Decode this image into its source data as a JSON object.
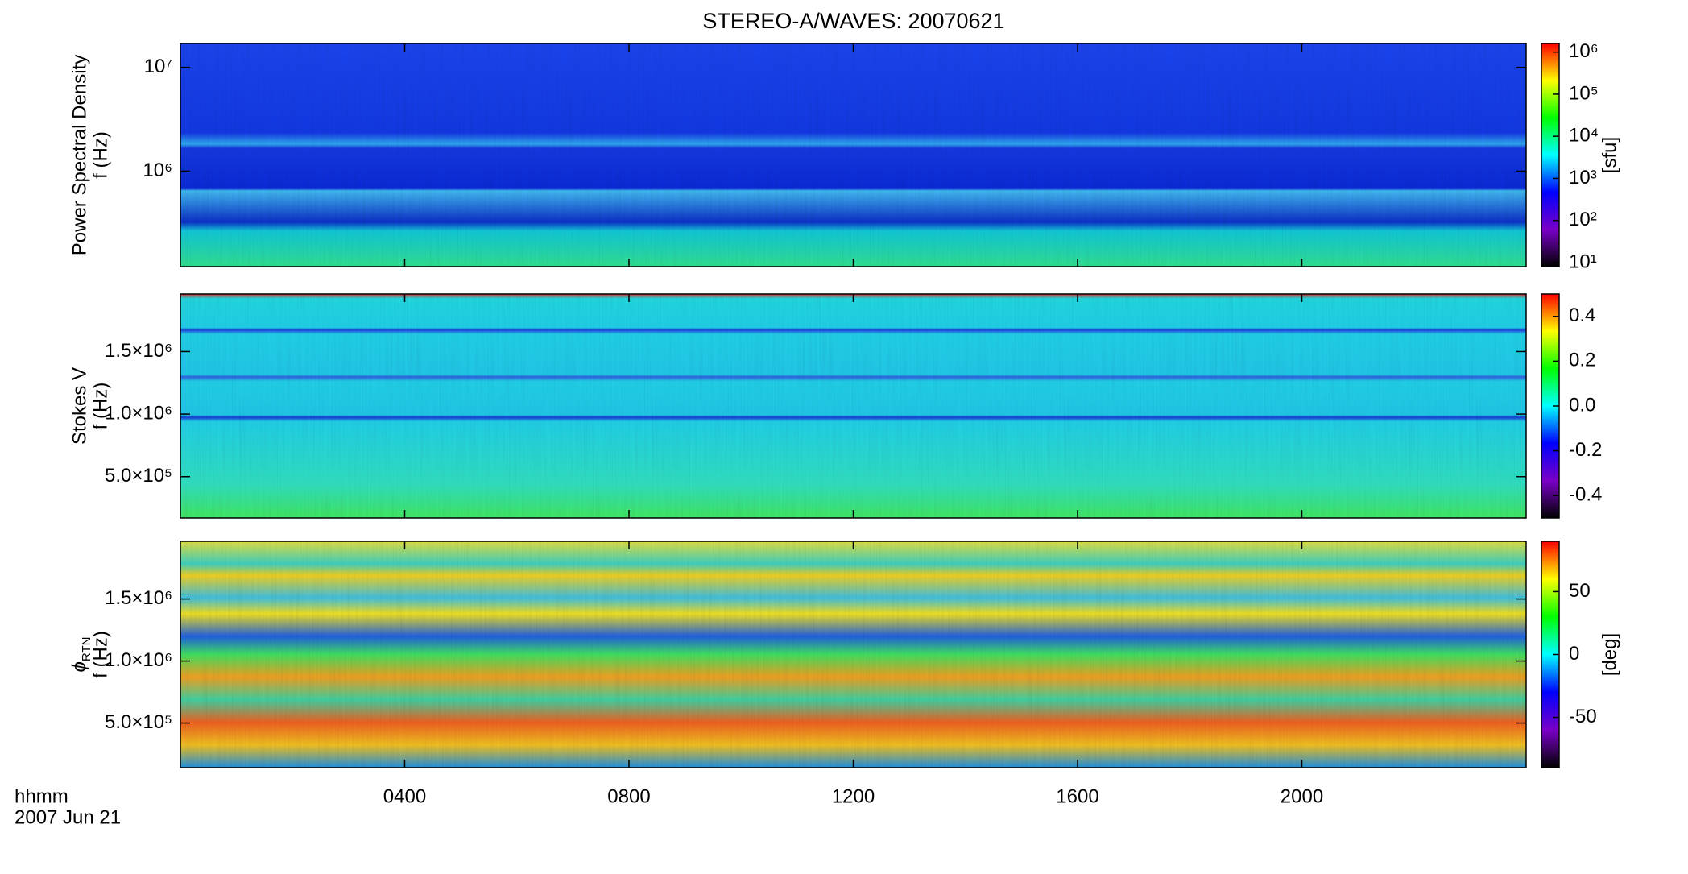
{
  "figure": {
    "title": "STEREO-A/WAVES: 20070621",
    "x_label": "hhmm",
    "x_sublabel": "2007 Jun 21",
    "xlim": [
      0,
      24
    ],
    "xticks": [
      {
        "value": 4,
        "label": "0400"
      },
      {
        "value": 8,
        "label": "0800"
      },
      {
        "value": 12,
        "label": "1200"
      },
      {
        "value": 16,
        "label": "1600"
      },
      {
        "value": 20,
        "label": "2000"
      }
    ],
    "colormap": [
      "#000000",
      "#7a00c8",
      "#0000ff",
      "#00ffff",
      "#00ff00",
      "#ffff00",
      "#ff0000"
    ]
  },
  "chart_data": [
    {
      "type": "heatmap",
      "ylabel_top": "Power Spectral Density",
      "ylabel": "f (Hz)",
      "yscale": "log",
      "ylim": [
        120000,
        17000000
      ],
      "yticks": [
        {
          "value": 1000000,
          "label": "10⁶"
        },
        {
          "value": 10000000,
          "label": "10⁷"
        }
      ],
      "colorbar": {
        "label": "[sfu]",
        "scale": "log",
        "lim": [
          8,
          1600000
        ],
        "ticks": [
          {
            "value": 10,
            "label": "10¹"
          },
          {
            "value": 100,
            "label": "10²"
          },
          {
            "value": 1000,
            "label": "10³"
          },
          {
            "value": 10000,
            "label": "10⁴"
          },
          {
            "value": 100000,
            "label": "10⁵"
          },
          {
            "value": 1000000,
            "label": "10⁶"
          }
        ]
      }
    },
    {
      "type": "heatmap",
      "ylabel_top": "Stokes V",
      "ylabel": "f (Hz)",
      "yscale": "linear",
      "ylim": [
        170000,
        1960000
      ],
      "yticks": [
        {
          "value": 500000,
          "label": "5.0×10⁵"
        },
        {
          "value": 1000000,
          "label": "1.0×10⁶"
        },
        {
          "value": 1500000,
          "label": "1.5×10⁶"
        }
      ],
      "colorbar": {
        "scale": "linear",
        "lim": [
          -0.5,
          0.5
        ],
        "ticks": [
          -0.4,
          -0.2,
          {
            "value": 0,
            "label": "0.0"
          },
          0.2,
          0.4
        ]
      }
    },
    {
      "type": "heatmap",
      "ylabel_symbol": "ϕ",
      "ylabel_subscript": "RTN",
      "ylabel": "f (Hz)",
      "yscale": "linear",
      "ylim": [
        140000,
        1965000
      ],
      "yticks": [
        {
          "value": 500000,
          "label": "5.0×10⁵"
        },
        {
          "value": 1000000,
          "label": "1.0×10⁶"
        },
        {
          "value": 1500000,
          "label": "1.5×10⁶"
        }
      ],
      "colorbar": {
        "label": "[deg]",
        "scale": "linear",
        "lim": [
          -90,
          90
        ],
        "ticks": [
          -50,
          0,
          50
        ]
      }
    }
  ]
}
